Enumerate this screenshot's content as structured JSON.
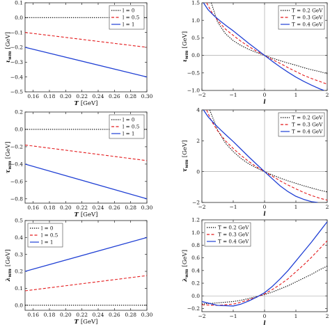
{
  "chart_data": [
    {
      "id": "p1",
      "type": "line",
      "xlabel_symbol": "T",
      "xlabel_unit": "[GeV]",
      "ylabel_symbol": "ι",
      "ylabel_sub": "wm",
      "ylabel_unit": "[GeV]",
      "xlim": [
        0.15,
        0.3
      ],
      "ylim": [
        -0.5,
        0.1
      ],
      "xticks": [
        0.16,
        0.18,
        0.2,
        0.22,
        0.24,
        0.26,
        0.28,
        0.3
      ],
      "xtick_labels": [
        "0.16",
        "0.18",
        "0.20",
        "0.22",
        "0.24",
        "0.26",
        "0.28",
        "0.30"
      ],
      "yticks": [
        0.1,
        0.0,
        -0.1,
        -0.2,
        -0.3,
        -0.4,
        -0.5
      ],
      "ytick_labels": [
        "0.1",
        "0.0",
        "−0.1",
        "−0.2",
        "−0.3",
        "−0.4",
        "−0.5"
      ],
      "legend_position": "top-right",
      "series": [
        {
          "name": "l = 0",
          "style": "dotted",
          "color": "#000000",
          "x": [
            0.15,
            0.3
          ],
          "y": [
            0.0,
            0.0
          ]
        },
        {
          "name": "l = 0.5",
          "style": "dashed",
          "color": "#e41a1c",
          "x": [
            0.15,
            0.3
          ],
          "y": [
            -0.1,
            -0.2
          ]
        },
        {
          "name": "l = 1",
          "style": "solid",
          "color": "#1f3fd4",
          "x": [
            0.15,
            0.3
          ],
          "y": [
            -0.2,
            -0.4
          ]
        }
      ]
    },
    {
      "id": "p2",
      "type": "line",
      "xlabel_symbol": "l",
      "xlabel_unit": "",
      "ylabel_symbol": "ι",
      "ylabel_sub": "wm",
      "ylabel_unit": "[GeV]",
      "xlim": [
        -2,
        2
      ],
      "ylim": [
        -1,
        1.5
      ],
      "xticks": [
        -2,
        -1,
        0,
        1,
        2
      ],
      "xtick_labels": [
        "−2",
        "−1",
        "0",
        "1",
        "2"
      ],
      "yticks": [
        1.5,
        1.0,
        0.5,
        0.0,
        -0.5,
        -1.0
      ],
      "ytick_labels": [
        "1.5",
        "1.0",
        "0.5",
        "0.0",
        "−0.5",
        "−1.0"
      ],
      "axes_origin_lines": true,
      "legend_position": "top-right",
      "series": [
        {
          "name": "T = 0.2 GeV",
          "style": "dotted",
          "color": "#000000",
          "x": [
            -1.7,
            -1.5,
            -1.25,
            -1.0,
            -0.75,
            -0.5,
            -0.25,
            0,
            0.25,
            0.5,
            0.75,
            1.0,
            1.25,
            1.5,
            1.75,
            2.0
          ],
          "y": [
            1.5,
            0.95,
            0.62,
            0.42,
            0.28,
            0.17,
            0.08,
            0,
            -0.08,
            -0.15,
            -0.22,
            -0.28,
            -0.35,
            -0.41,
            -0.46,
            -0.52
          ]
        },
        {
          "name": "T = 0.3 GeV",
          "style": "dashed",
          "color": "#e41a1c",
          "x": [
            -1.85,
            -1.7,
            -1.5,
            -1.25,
            -1.0,
            -0.75,
            -0.5,
            -0.25,
            0,
            0.25,
            0.5,
            0.75,
            1.0,
            1.25,
            1.5,
            1.75,
            2.0
          ],
          "y": [
            1.5,
            1.25,
            1.0,
            0.75,
            0.57,
            0.4,
            0.25,
            0.12,
            0,
            -0.12,
            -0.23,
            -0.35,
            -0.46,
            -0.57,
            -0.66,
            -0.74,
            -0.82
          ]
        },
        {
          "name": "T = 0.4 GeV",
          "style": "solid",
          "color": "#1f3fd4",
          "x": [
            -1.95,
            -1.8,
            -1.6,
            -1.4,
            -1.2,
            -1.0,
            -0.75,
            -0.5,
            -0.25,
            0,
            0.25,
            0.5,
            0.75,
            1.0,
            1.25,
            1.5,
            1.75,
            1.9
          ],
          "y": [
            1.5,
            1.3,
            1.12,
            0.97,
            0.83,
            0.7,
            0.52,
            0.34,
            0.17,
            0,
            -0.17,
            -0.33,
            -0.48,
            -0.62,
            -0.74,
            -0.85,
            -0.95,
            -1.0
          ]
        }
      ]
    },
    {
      "id": "p3",
      "type": "line",
      "xlabel_symbol": "T",
      "xlabel_unit": "[GeV]",
      "ylabel_symbol": "τ",
      "ylabel_sub": "wm",
      "ylabel_unit": "[GeV]",
      "xlim": [
        0.15,
        0.3
      ],
      "ylim": [
        -0.85,
        0.2
      ],
      "xticks": [
        0.16,
        0.18,
        0.2,
        0.22,
        0.24,
        0.26,
        0.28,
        0.3
      ],
      "xtick_labels": [
        "0.16",
        "0.18",
        "0.20",
        "0.22",
        "0.24",
        "0.26",
        "0.28",
        "0.30"
      ],
      "yticks": [
        0.2,
        0.0,
        -0.2,
        -0.4,
        -0.6,
        -0.8
      ],
      "ytick_labels": [
        "0.2",
        "0.0",
        "−0.2",
        "−0.4",
        "−0.6",
        "−0.8"
      ],
      "legend_position": "top-right",
      "series": [
        {
          "name": "l = 0",
          "style": "dotted",
          "color": "#000000",
          "x": [
            0.15,
            0.3
          ],
          "y": [
            0.0,
            0.0
          ]
        },
        {
          "name": "l = 0.5",
          "style": "dashed",
          "color": "#e41a1c",
          "x": [
            0.15,
            0.3
          ],
          "y": [
            -0.18,
            -0.36
          ]
        },
        {
          "name": "l = 1",
          "style": "solid",
          "color": "#1f3fd4",
          "x": [
            0.15,
            0.3
          ],
          "y": [
            -0.4,
            -0.8
          ]
        }
      ]
    },
    {
      "id": "p4",
      "type": "line",
      "xlabel_symbol": "l",
      "xlabel_unit": "",
      "ylabel_symbol": "τ",
      "ylabel_sub": "wm",
      "ylabel_unit": "[GeV]",
      "xlim": [
        -2,
        2
      ],
      "ylim": [
        -2,
        4
      ],
      "xticks": [
        -2,
        -1,
        0,
        1,
        2
      ],
      "xtick_labels": [
        "−2",
        "−1",
        "0",
        "1",
        "2"
      ],
      "yticks": [
        4,
        2,
        0,
        -2
      ],
      "ytick_labels": [
        "4",
        "2",
        "0",
        "−2"
      ],
      "axes_origin_lines": true,
      "legend_position": "top-right",
      "series": [
        {
          "name": "T = 0.2 GeV",
          "style": "dotted",
          "color": "#000000",
          "x": [
            -1.75,
            -1.5,
            -1.25,
            -1.0,
            -0.75,
            -0.5,
            -0.25,
            0,
            0.25,
            0.5,
            0.75,
            1.0,
            1.25,
            1.5,
            1.75,
            2.0
          ],
          "y": [
            4.0,
            2.7,
            1.85,
            1.3,
            0.85,
            0.5,
            0.23,
            0,
            -0.22,
            -0.42,
            -0.6,
            -0.76,
            -0.92,
            -1.06,
            -1.2,
            -1.32
          ]
        },
        {
          "name": "T = 0.3 GeV",
          "style": "dashed",
          "color": "#e41a1c",
          "x": [
            -1.85,
            -1.7,
            -1.5,
            -1.25,
            -1.0,
            -0.75,
            -0.5,
            -0.25,
            0,
            0.25,
            0.5,
            0.75,
            1.0,
            1.25,
            1.5,
            1.75,
            2.0
          ],
          "y": [
            4.0,
            3.3,
            2.65,
            2.0,
            1.5,
            1.05,
            0.65,
            0.3,
            0,
            -0.3,
            -0.6,
            -0.87,
            -1.12,
            -1.35,
            -1.55,
            -1.72,
            -1.85
          ]
        },
        {
          "name": "T = 0.4 GeV",
          "style": "solid",
          "color": "#1f3fd4",
          "x": [
            -1.95,
            -1.8,
            -1.6,
            -1.4,
            -1.2,
            -1.0,
            -0.75,
            -0.5,
            -0.25,
            0,
            0.25,
            0.5,
            0.75,
            1.0,
            1.25,
            1.5,
            1.7
          ],
          "y": [
            4.0,
            3.55,
            3.1,
            2.7,
            2.32,
            1.95,
            1.45,
            0.95,
            0.47,
            0,
            -0.47,
            -0.93,
            -1.3,
            -1.6,
            -1.8,
            -1.95,
            -2.0
          ]
        }
      ]
    },
    {
      "id": "p5",
      "type": "line",
      "xlabel_symbol": "T",
      "xlabel_unit": "[GeV]",
      "ylabel_symbol": "λ",
      "ylabel_sub": "wm",
      "ylabel_unit": "[GeV]",
      "xlim": [
        0.15,
        0.3
      ],
      "ylim": [
        -0.03,
        0.5
      ],
      "xticks": [
        0.16,
        0.18,
        0.2,
        0.22,
        0.24,
        0.26,
        0.28,
        0.3
      ],
      "xtick_labels": [
        "0.16",
        "0.18",
        "0.20",
        "0.22",
        "0.24",
        "0.26",
        "0.28",
        "0.30"
      ],
      "yticks": [
        0.5,
        0.4,
        0.3,
        0.2,
        0.1,
        0.0
      ],
      "ytick_labels": [
        "0.5",
        "0.4",
        "0.3",
        "0.2",
        "0.1",
        "0.0"
      ],
      "legend_position": "top-left",
      "series": [
        {
          "name": "l = 0",
          "style": "dotted",
          "color": "#000000",
          "x": [
            0.15,
            0.3
          ],
          "y": [
            0.0,
            0.0
          ]
        },
        {
          "name": "l = 0.5",
          "style": "dashed",
          "color": "#e41a1c",
          "x": [
            0.15,
            0.3
          ],
          "y": [
            0.085,
            0.175
          ]
        },
        {
          "name": "l = 1",
          "style": "solid",
          "color": "#1f3fd4",
          "x": [
            0.15,
            0.3
          ],
          "y": [
            0.2,
            0.4
          ]
        }
      ]
    },
    {
      "id": "p6",
      "type": "line",
      "xlabel_symbol": "l",
      "xlabel_unit": "",
      "ylabel_symbol": "λ",
      "ylabel_sub": "wm",
      "ylabel_unit": "[GeV]",
      "xlim": [
        -2,
        2
      ],
      "ylim": [
        -0.25,
        1.2
      ],
      "xticks": [
        -2,
        -1,
        0,
        1,
        2
      ],
      "xtick_labels": [
        "−2",
        "−1",
        "0",
        "1",
        "2"
      ],
      "yticks": [
        1.2,
        1.0,
        0.8,
        0.6,
        0.4,
        0.2,
        0.0,
        -0.2
      ],
      "ytick_labels": [
        "1.2",
        "1.0",
        "0.8",
        "0.6",
        "0.4",
        "0.2",
        "0.0",
        "−0.2"
      ],
      "axes_origin_lines": true,
      "legend_position": "top-left",
      "series": [
        {
          "name": "T = 0.2 GeV",
          "style": "dotted",
          "color": "#000000",
          "x": [
            -2.0,
            -1.5,
            -1.0,
            -0.75,
            -0.5,
            -0.25,
            0,
            0.25,
            0.5,
            0.75,
            1.0,
            1.25,
            1.5,
            1.75,
            2.0
          ],
          "y": [
            -0.13,
            -0.11,
            -0.09,
            -0.07,
            -0.04,
            -0.01,
            0.02,
            0.06,
            0.11,
            0.16,
            0.22,
            0.28,
            0.34,
            0.41,
            0.47
          ]
        },
        {
          "name": "T = 0.3 GeV",
          "style": "dashed",
          "color": "#e41a1c",
          "x": [
            -2.0,
            -1.5,
            -1.0,
            -0.75,
            -0.5,
            -0.25,
            0,
            0.25,
            0.5,
            0.75,
            1.0,
            1.25,
            1.5,
            1.75,
            2.0
          ],
          "y": [
            -0.14,
            -0.15,
            -0.13,
            -0.1,
            -0.06,
            -0.02,
            0.03,
            0.1,
            0.18,
            0.27,
            0.38,
            0.49,
            0.61,
            0.74,
            0.87
          ]
        },
        {
          "name": "T = 0.4 GeV",
          "style": "solid",
          "color": "#1f3fd4",
          "x": [
            -2.0,
            -1.5,
            -1.0,
            -0.75,
            -0.5,
            -0.25,
            0,
            0.25,
            0.5,
            0.75,
            1.0,
            1.25,
            1.5,
            1.75,
            2.0
          ],
          "y": [
            -0.09,
            -0.15,
            -0.16,
            -0.13,
            -0.08,
            -0.02,
            0.05,
            0.15,
            0.27,
            0.4,
            0.55,
            0.7,
            0.85,
            1.01,
            1.17
          ]
        }
      ]
    }
  ]
}
